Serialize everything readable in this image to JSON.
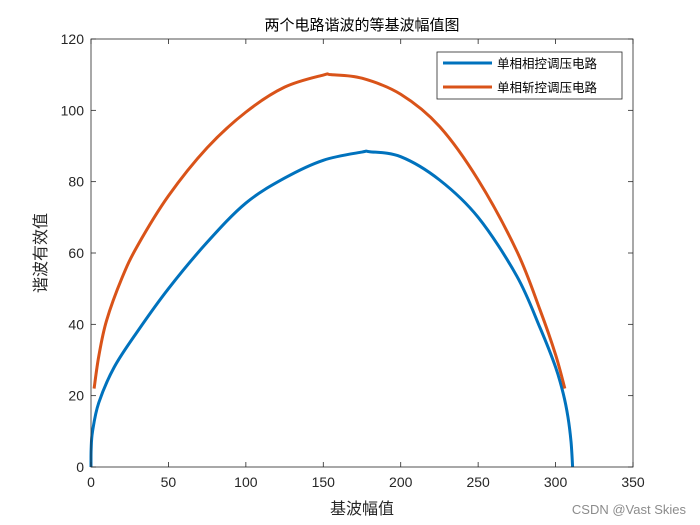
{
  "chart_data": {
    "type": "line",
    "title": "两个电路谐波的等基波幅值图",
    "xlabel": "基波幅值",
    "ylabel": "谐波有效值",
    "xlim": [
      0,
      350
    ],
    "ylim": [
      0,
      120
    ],
    "xticks": [
      "0",
      "50",
      "100",
      "150",
      "200",
      "250",
      "300",
      "350"
    ],
    "yticks": [
      "0",
      "20",
      "40",
      "60",
      "80",
      "100",
      "120"
    ],
    "grid": false,
    "legend_position": "top-right",
    "series": [
      {
        "name": "单相相控调压电路",
        "color": "#0072BD",
        "x": [
          0,
          0.1,
          1,
          5,
          15,
          30,
          50,
          75,
          100,
          125,
          150,
          175,
          180,
          200,
          225,
          250,
          275,
          290,
          300,
          305,
          308,
          310,
          311
        ],
        "y": [
          0,
          5,
          10,
          18,
          28,
          38,
          50,
          63,
          74,
          81,
          86,
          88.3,
          88.4,
          87,
          80.5,
          70,
          53.5,
          39,
          28,
          20.5,
          14,
          7,
          0
        ]
      },
      {
        "name": "单相斩控调压电路",
        "color": "#D95319",
        "x": [
          2,
          5,
          10,
          20,
          30,
          50,
          75,
          100,
          125,
          150,
          155,
          175,
          200,
          225,
          250,
          275,
          290,
          300,
          306
        ],
        "y": [
          22,
          31,
          41,
          53,
          62,
          76,
          89.5,
          99.5,
          106.5,
          109.9,
          110,
          109,
          104.5,
          95.5,
          80.5,
          60.5,
          44,
          31.5,
          22
        ]
      }
    ]
  },
  "watermark": "CSDN @Vast Skies"
}
